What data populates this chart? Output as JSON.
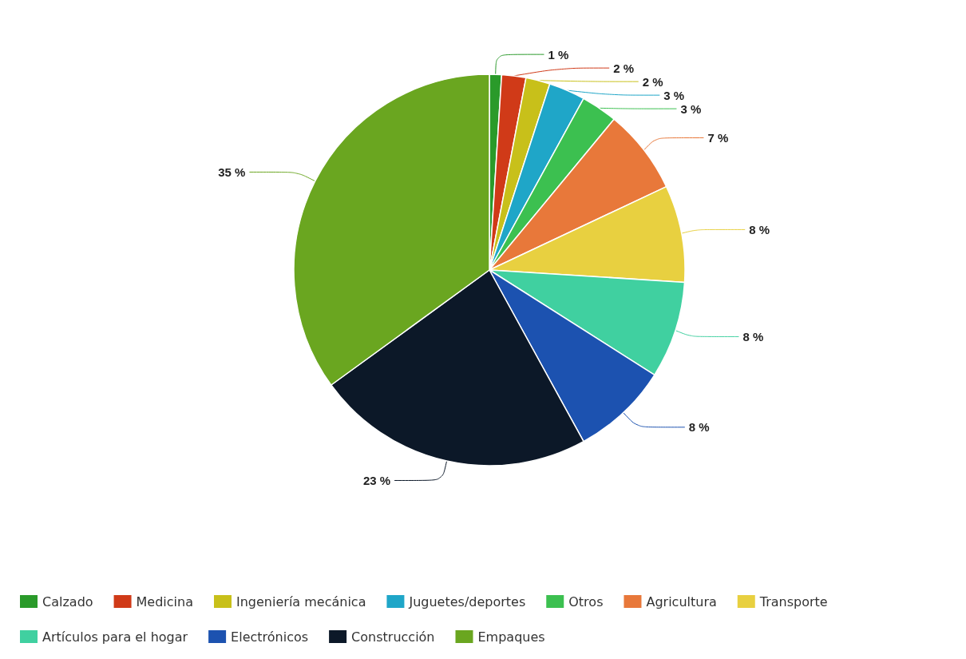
{
  "chart_data": {
    "type": "pie",
    "categories": [
      "Calzado",
      "Medicina",
      "Ingeniería mecánica",
      "Juguetes/deportes",
      "Otros",
      "Agricultura",
      "Transporte",
      "Artículos para el hogar",
      "Electrónicos",
      "Construcción",
      "Empaques"
    ],
    "values": [
      1,
      2,
      2,
      3,
      3,
      7,
      8,
      8,
      8,
      23,
      35
    ],
    "colors": [
      "#2a9a2a",
      "#d03a18",
      "#c8c01a",
      "#1fa6c8",
      "#3cc050",
      "#e8783a",
      "#e8d040",
      "#40d0a0",
      "#1c52b0",
      "#0c1828",
      "#6aa620"
    ],
    "value_labels": [
      "1 %",
      "2 %",
      "2 %",
      "3 %",
      "3 %",
      "7 %",
      "8 %",
      "8 %",
      "8 %",
      "23 %",
      "35 %"
    ],
    "legend": "bottom"
  }
}
